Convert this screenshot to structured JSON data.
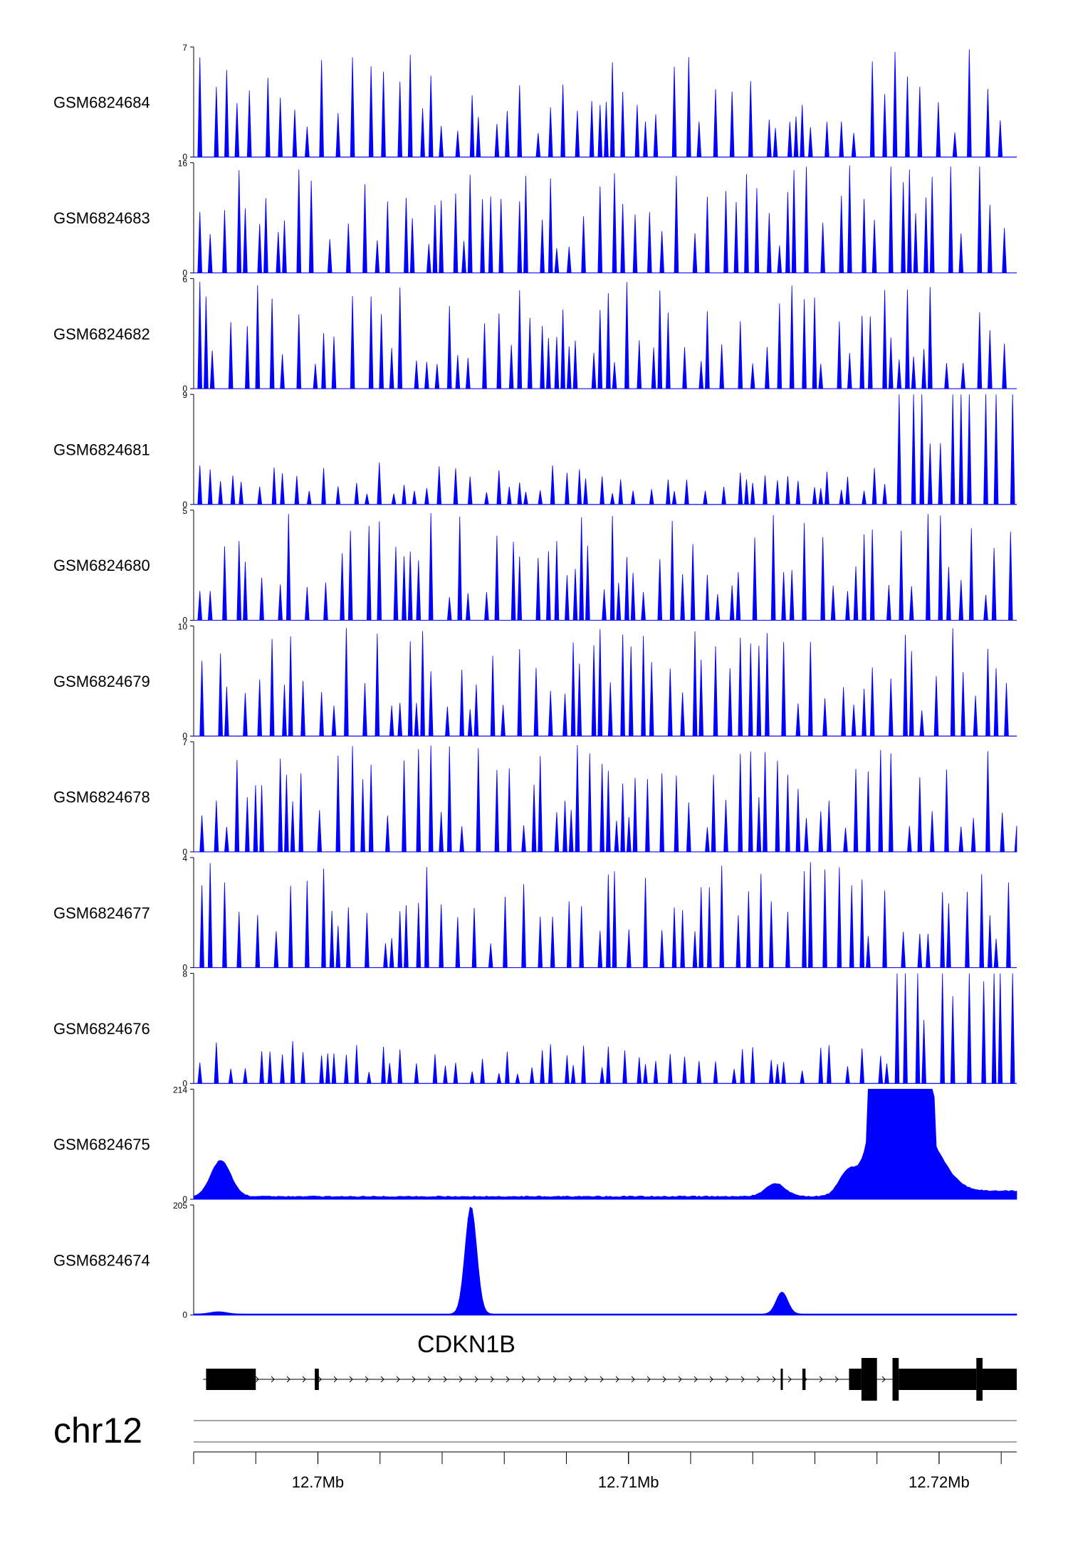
{
  "chart_data": {
    "type": "area",
    "title": "",
    "colors": {
      "signal": "#0000ff",
      "gene": "#000000",
      "axis": "#000000",
      "guide": "#888888"
    },
    "tracks": [
      {
        "name": "GSM6824684",
        "ymin": 0,
        "ymax": 7,
        "ymin_label": "0",
        "ymax_label": "7"
      },
      {
        "name": "GSM6824683",
        "ymin": 0,
        "ymax": 16,
        "ymin_label": "0",
        "ymax_label": "16"
      },
      {
        "name": "GSM6824682",
        "ymin": 0,
        "ymax": 6,
        "ymin_label": "0",
        "ymax_label": "6"
      },
      {
        "name": "GSM6824681",
        "ymin": 0,
        "ymax": 9,
        "ymin_label": "0",
        "ymax_label": "9"
      },
      {
        "name": "GSM6824680",
        "ymin": 0,
        "ymax": 5,
        "ymin_label": "0",
        "ymax_label": "5"
      },
      {
        "name": "GSM6824679",
        "ymin": 0,
        "ymax": 10,
        "ymin_label": "0",
        "ymax_label": "10"
      },
      {
        "name": "GSM6824678",
        "ymin": 0,
        "ymax": 7,
        "ymin_label": "0",
        "ymax_label": "7"
      },
      {
        "name": "GSM6824677",
        "ymin": 0,
        "ymax": 4,
        "ymin_label": "0",
        "ymax_label": "4"
      },
      {
        "name": "GSM6824676",
        "ymin": 0,
        "ymax": 8,
        "ymin_label": "0",
        "ymax_label": "8"
      },
      {
        "name": "GSM6824675",
        "ymin": 0,
        "ymax": 214,
        "ymin_label": "0",
        "ymax_label": "214"
      },
      {
        "name": "GSM6824674",
        "ymin": 0,
        "ymax": 205,
        "ymin_label": "0",
        "ymax_label": "205"
      }
    ],
    "xaxis": {
      "chromosome": "chr12",
      "unit": "Mb",
      "range": [
        12.696,
        12.7225
      ],
      "major_ticks": [
        {
          "value": 12.7,
          "label": "12.7Mb"
        },
        {
          "value": 12.71,
          "label": "12.71Mb"
        },
        {
          "value": 12.72,
          "label": "12.72Mb"
        }
      ],
      "minor_tick_step": 0.002
    },
    "gene": {
      "name": "CDKN1B",
      "strand": "+",
      "start": 12.6963,
      "end": 12.7225,
      "exons": [
        {
          "start": 12.6964,
          "end": 12.698,
          "kind": "utr"
        },
        {
          "start": 12.6999,
          "end": 12.70003,
          "kind": "utr"
        },
        {
          "start": 12.7149,
          "end": 12.71495,
          "kind": "utr"
        },
        {
          "start": 12.7156,
          "end": 12.7157,
          "kind": "utr"
        },
        {
          "start": 12.7171,
          "end": 12.7175,
          "kind": "utr"
        },
        {
          "start": 12.7175,
          "end": 12.718,
          "kind": "cds"
        },
        {
          "start": 12.7185,
          "end": 12.7187,
          "kind": "cds"
        },
        {
          "start": 12.7187,
          "end": 12.7212,
          "kind": "utr"
        },
        {
          "start": 12.7212,
          "end": 12.7214,
          "kind": "cds"
        },
        {
          "start": 12.7214,
          "end": 12.7225,
          "kind": "utr"
        }
      ]
    }
  }
}
